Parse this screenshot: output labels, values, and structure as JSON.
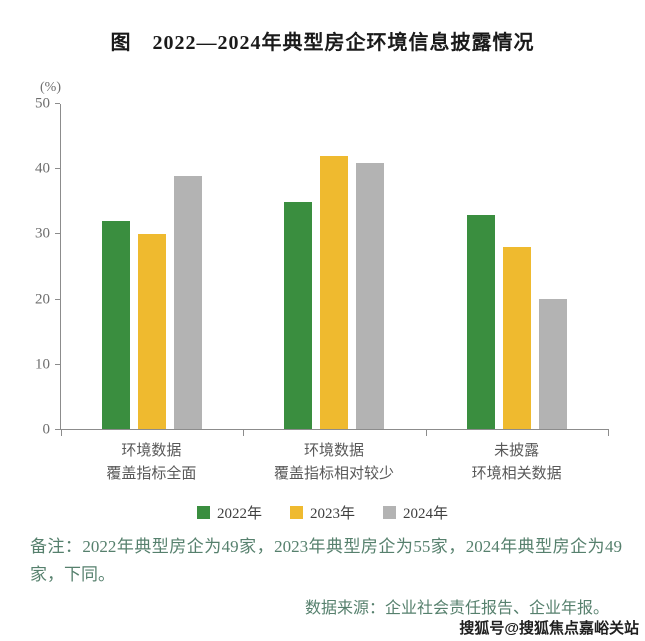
{
  "chart_data": {
    "type": "bar",
    "title": "图　2022—2024年典型房企环境信息披露情况",
    "unit_label": "(%)",
    "categories": [
      [
        "环境数据",
        "覆盖指标全面"
      ],
      [
        "环境数据",
        "覆盖指标相对较少"
      ],
      [
        "未披露",
        "环境相关数据"
      ]
    ],
    "series": [
      {
        "name": "2022年",
        "color": "#3a8e3f",
        "values": [
          32,
          35,
          33
        ]
      },
      {
        "name": "2023年",
        "color": "#efba2f",
        "values": [
          30,
          42,
          28
        ]
      },
      {
        "name": "2024年",
        "color": "#b3b3b3",
        "values": [
          39,
          41,
          20
        ]
      }
    ],
    "ylim": [
      0,
      50
    ],
    "yticks": [
      0,
      10,
      20,
      30,
      40,
      50
    ],
    "grid": false,
    "legend_position": "bottom"
  },
  "notes": {
    "remark": "备注：2022年典型房企为49家，2023年典型房企为55家，2024年典型房企为49家，下同。",
    "source": "数据来源：企业社会责任报告、企业年报。"
  },
  "watermark": "搜狐号@搜狐焦点嘉峪关站"
}
